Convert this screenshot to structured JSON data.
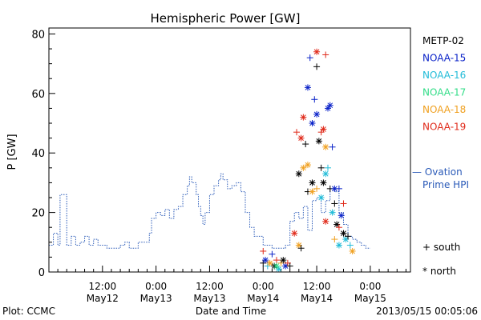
{
  "chart_data": {
    "type": "scatter",
    "title": "Hemispheric Power [GW]",
    "xlabel": "Date and Time",
    "ylabel": "P [GW]",
    "xlim": [
      0,
      81
    ],
    "ylim": [
      0,
      82
    ],
    "y_ticks": [
      0,
      20,
      40,
      60,
      80
    ],
    "x_ticks": [
      {
        "x": 12,
        "time": "12:00",
        "date": "May12"
      },
      {
        "x": 24,
        "time": "0:00",
        "date": "May13"
      },
      {
        "x": 36,
        "time": "12:00",
        "date": "May13"
      },
      {
        "x": 48,
        "time": "0:00",
        "date": "May14"
      },
      {
        "x": 60,
        "time": "12:00",
        "date": "May14"
      },
      {
        "x": 72,
        "time": "0:00",
        "date": "May15"
      }
    ],
    "footer_left": "Plot: CCMC",
    "footer_right": "2013/05/15 00:05:06",
    "legend_series": [
      {
        "name": "METP-02",
        "color": "#000000"
      },
      {
        "name": "NOAA-15",
        "color": "#0a22c8"
      },
      {
        "name": "NOAA-16",
        "color": "#22bcd8"
      },
      {
        "name": "NOAA-17",
        "color": "#33dd88"
      },
      {
        "name": "NOAA-18",
        "color": "#f0a020"
      },
      {
        "name": "NOAA-19",
        "color": "#e02a1a"
      }
    ],
    "ovation_label_1": "— Ovation",
    "ovation_label_2": "Prime HPI",
    "ovation_color": "#2a5ab8",
    "marker_south": "+ south",
    "marker_north": "* north",
    "ovation_step": [
      [
        0,
        9
      ],
      [
        1,
        13
      ],
      [
        2,
        9
      ],
      [
        2.5,
        26
      ],
      [
        3.5,
        26
      ],
      [
        4,
        9
      ],
      [
        5,
        12
      ],
      [
        6,
        9
      ],
      [
        7,
        10
      ],
      [
        8,
        12
      ],
      [
        9,
        9
      ],
      [
        10,
        11
      ],
      [
        11,
        9
      ],
      [
        12,
        9
      ],
      [
        13,
        8
      ],
      [
        14,
        8
      ],
      [
        15,
        8
      ],
      [
        16,
        9
      ],
      [
        17,
        10
      ],
      [
        18,
        8
      ],
      [
        19,
        8
      ],
      [
        20,
        10
      ],
      [
        21,
        10
      ],
      [
        22,
        10
      ],
      [
        22.5,
        13
      ],
      [
        23,
        18
      ],
      [
        24,
        20
      ],
      [
        25,
        19
      ],
      [
        26,
        21
      ],
      [
        27,
        18
      ],
      [
        28,
        21
      ],
      [
        29,
        22
      ],
      [
        30,
        26
      ],
      [
        31,
        29
      ],
      [
        31.5,
        32
      ],
      [
        32,
        30
      ],
      [
        33,
        26
      ],
      [
        33.5,
        22
      ],
      [
        34,
        19
      ],
      [
        34.5,
        16
      ],
      [
        35,
        20
      ],
      [
        36,
        26
      ],
      [
        37,
        29
      ],
      [
        38,
        31
      ],
      [
        38.5,
        33
      ],
      [
        39,
        31
      ],
      [
        40,
        28
      ],
      [
        41,
        29
      ],
      [
        42,
        30
      ],
      [
        43,
        27
      ],
      [
        44,
        20
      ],
      [
        45,
        15
      ],
      [
        46,
        12
      ],
      [
        47,
        12
      ],
      [
        48,
        9
      ],
      [
        49,
        9
      ],
      [
        50,
        8
      ],
      [
        51,
        8
      ],
      [
        52,
        8
      ],
      [
        53,
        9
      ],
      [
        54,
        17
      ],
      [
        55,
        20
      ],
      [
        56,
        18
      ],
      [
        57,
        22
      ],
      [
        58,
        14
      ],
      [
        59,
        24
      ],
      [
        60,
        25
      ],
      [
        61,
        20
      ],
      [
        62,
        24
      ],
      [
        63,
        28
      ],
      [
        64,
        27
      ],
      [
        65,
        20
      ],
      [
        66,
        16
      ],
      [
        67,
        12
      ],
      [
        68,
        11
      ],
      [
        69,
        10
      ],
      [
        70,
        9
      ],
      [
        71,
        8
      ],
      [
        72,
        8
      ]
    ],
    "points": [
      {
        "x": 48,
        "y": 3,
        "s": "METP-02",
        "m": "+"
      },
      {
        "x": 48.5,
        "y": 4,
        "s": "NOAA-15",
        "m": "*"
      },
      {
        "x": 49,
        "y": 2,
        "s": "NOAA-16",
        "m": "+"
      },
      {
        "x": 49.5,
        "y": 3,
        "s": "NOAA-18",
        "m": "*"
      },
      {
        "x": 50,
        "y": 6,
        "s": "NOAA-15",
        "m": "+"
      },
      {
        "x": 50.5,
        "y": 2,
        "s": "METP-02",
        "m": "*"
      },
      {
        "x": 51,
        "y": 4,
        "s": "NOAA-19",
        "m": "+"
      },
      {
        "x": 51.5,
        "y": 1,
        "s": "NOAA-16",
        "m": "*"
      },
      {
        "x": 52,
        "y": 3,
        "s": "NOAA-18",
        "m": "+"
      },
      {
        "x": 52.5,
        "y": 4,
        "s": "METP-02",
        "m": "*"
      },
      {
        "x": 53,
        "y": 2,
        "s": "NOAA-15",
        "m": "*"
      },
      {
        "x": 53.5,
        "y": 3,
        "s": "NOAA-19",
        "m": "+"
      },
      {
        "x": 54,
        "y": 2,
        "s": "METP-02",
        "m": "+"
      },
      {
        "x": 48,
        "y": 7,
        "s": "NOAA-19",
        "m": "+"
      },
      {
        "x": 51,
        "y": 2,
        "s": "NOAA-17",
        "m": "*"
      },
      {
        "x": 55,
        "y": 13,
        "s": "NOAA-19",
        "m": "*"
      },
      {
        "x": 56,
        "y": 9,
        "s": "NOAA-18",
        "m": "*"
      },
      {
        "x": 56.5,
        "y": 8,
        "s": "METP-02",
        "m": "+"
      },
      {
        "x": 55.5,
        "y": 47,
        "s": "NOAA-19",
        "m": "+"
      },
      {
        "x": 56,
        "y": 33,
        "s": "METP-02",
        "m": "*"
      },
      {
        "x": 56.5,
        "y": 45,
        "s": "NOAA-19",
        "m": "*"
      },
      {
        "x": 57,
        "y": 52,
        "s": "NOAA-19",
        "m": "*"
      },
      {
        "x": 57.5,
        "y": 43,
        "s": "METP-02",
        "m": "+"
      },
      {
        "x": 58,
        "y": 62,
        "s": "NOAA-15",
        "m": "*"
      },
      {
        "x": 58.5,
        "y": 72,
        "s": "NOAA-15",
        "m": "+"
      },
      {
        "x": 57,
        "y": 35,
        "s": "NOAA-18",
        "m": "*"
      },
      {
        "x": 58,
        "y": 36,
        "s": "NOAA-18",
        "m": "*"
      },
      {
        "x": 59,
        "y": 50,
        "s": "NOAA-15",
        "m": "*"
      },
      {
        "x": 59.5,
        "y": 58,
        "s": "NOAA-15",
        "m": "+"
      },
      {
        "x": 60,
        "y": 69,
        "s": "METP-02",
        "m": "+"
      },
      {
        "x": 60,
        "y": 74,
        "s": "NOAA-19",
        "m": "*"
      },
      {
        "x": 60,
        "y": 53,
        "s": "NOAA-15",
        "m": "*"
      },
      {
        "x": 60.5,
        "y": 44,
        "s": "METP-02",
        "m": "*"
      },
      {
        "x": 61,
        "y": 47,
        "s": "NOAA-19",
        "m": "+"
      },
      {
        "x": 61.5,
        "y": 48,
        "s": "NOAA-19",
        "m": "*"
      },
      {
        "x": 62,
        "y": 73,
        "s": "NOAA-19",
        "m": "+"
      },
      {
        "x": 62,
        "y": 42,
        "s": "NOAA-18",
        "m": "*"
      },
      {
        "x": 62.5,
        "y": 55,
        "s": "NOAA-15",
        "m": "*"
      },
      {
        "x": 63,
        "y": 56,
        "s": "NOAA-15",
        "m": "*"
      },
      {
        "x": 63.5,
        "y": 42,
        "s": "NOAA-15",
        "m": "+"
      },
      {
        "x": 59,
        "y": 30,
        "s": "METP-02",
        "m": "*"
      },
      {
        "x": 60,
        "y": 28,
        "s": "NOAA-18",
        "m": "+"
      },
      {
        "x": 61,
        "y": 35,
        "s": "METP-02",
        "m": "+"
      },
      {
        "x": 61.5,
        "y": 30,
        "s": "METP-02",
        "m": "*"
      },
      {
        "x": 62,
        "y": 33,
        "s": "NOAA-16",
        "m": "*"
      },
      {
        "x": 62.5,
        "y": 35,
        "s": "NOAA-16",
        "m": "+"
      },
      {
        "x": 58,
        "y": 27,
        "s": "METP-02",
        "m": "+"
      },
      {
        "x": 59,
        "y": 27,
        "s": "NOAA-18",
        "m": "*"
      },
      {
        "x": 61,
        "y": 25,
        "s": "NOAA-16",
        "m": "*"
      },
      {
        "x": 62,
        "y": 17,
        "s": "NOAA-19",
        "m": "*"
      },
      {
        "x": 63,
        "y": 28,
        "s": "METP-02",
        "m": "+"
      },
      {
        "x": 63.5,
        "y": 20,
        "s": "NOAA-16",
        "m": "*"
      },
      {
        "x": 64,
        "y": 23,
        "s": "METP-02",
        "m": "+"
      },
      {
        "x": 64,
        "y": 28,
        "s": "NOAA-15",
        "m": "*"
      },
      {
        "x": 64.5,
        "y": 16,
        "s": "METP-02",
        "m": "*"
      },
      {
        "x": 65,
        "y": 28,
        "s": "NOAA-15",
        "m": "+"
      },
      {
        "x": 65,
        "y": 15,
        "s": "NOAA-19",
        "m": "+"
      },
      {
        "x": 65.5,
        "y": 19,
        "s": "NOAA-15",
        "m": "*"
      },
      {
        "x": 66,
        "y": 13,
        "s": "METP-02",
        "m": "*"
      },
      {
        "x": 66,
        "y": 23,
        "s": "NOAA-19",
        "m": "+"
      },
      {
        "x": 66.5,
        "y": 11,
        "s": "NOAA-16",
        "m": "*"
      },
      {
        "x": 67,
        "y": 12,
        "s": "METP-02",
        "m": "+"
      },
      {
        "x": 67.5,
        "y": 9,
        "s": "NOAA-16",
        "m": "+"
      },
      {
        "x": 68,
        "y": 7,
        "s": "NOAA-18",
        "m": "*"
      },
      {
        "x": 64,
        "y": 11,
        "s": "NOAA-18",
        "m": "+"
      },
      {
        "x": 65,
        "y": 9,
        "s": "NOAA-16",
        "m": "*"
      }
    ]
  }
}
